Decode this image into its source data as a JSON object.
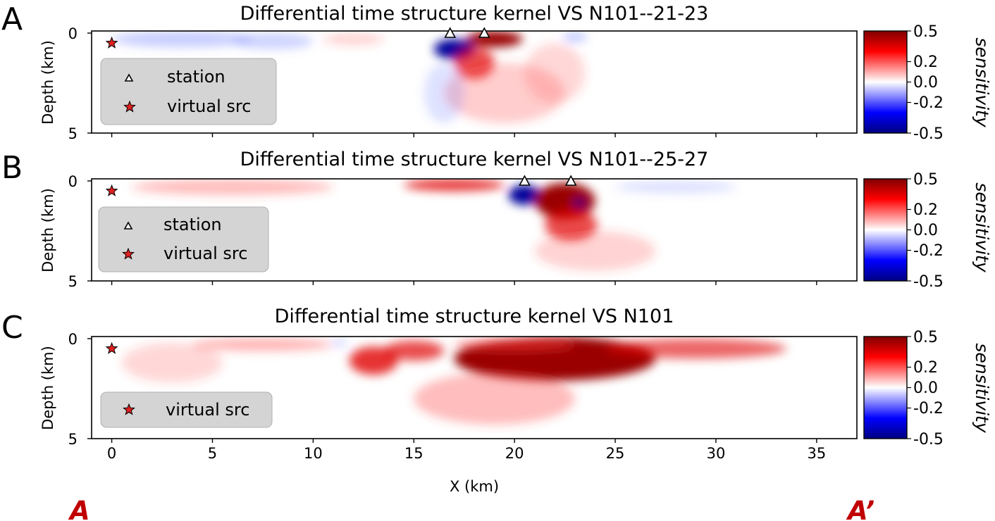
{
  "figure": {
    "endpoint_left": "A",
    "endpoint_right": "A’",
    "xlabel": "X (km)"
  },
  "chart_data": [
    {
      "type": "heatmap",
      "panel_letter": "A",
      "title": "Differential time structure kernel VS N101--21-23",
      "xlabel": "X (km)",
      "ylabel": "Depth (km)",
      "xlim": [
        -1,
        37
      ],
      "ylim": [
        5,
        0
      ],
      "x_ticks": [
        0,
        5,
        10,
        15,
        20,
        25,
        30,
        35
      ],
      "x_tick_labels": [],
      "y_ticks": [
        0,
        5
      ],
      "y_tick_labels": [
        "0",
        "5"
      ],
      "colorbar": {
        "label": "sensitivity",
        "range": [
          -0.5,
          0.5
        ],
        "cmap": "seismic",
        "ticks": [
          0.5,
          0.2,
          0.0,
          -0.2,
          -0.5
        ],
        "tick_labels": [
          "0.5",
          "0.2",
          "0.0",
          "-0.2",
          "-0.5"
        ]
      },
      "legend": {
        "position": "lower-left",
        "entries": [
          {
            "marker": "triangle",
            "label": "station"
          },
          {
            "marker": "star",
            "label": "virtual src"
          }
        ]
      },
      "stations": [
        {
          "x": 16.8,
          "depth": 0.0
        },
        {
          "x": 18.5,
          "depth": 0.0
        }
      ],
      "virtual_source": {
        "x": 0.0,
        "depth": 0.5
      },
      "anomalies": [
        {
          "x": 17.0,
          "depth": 0.8,
          "sx": 1.0,
          "sd": 0.5,
          "value": -0.45
        },
        {
          "x": 19.0,
          "depth": 0.3,
          "sx": 1.4,
          "sd": 0.4,
          "value": 0.5
        },
        {
          "x": 18.0,
          "depth": 1.5,
          "sx": 1.0,
          "sd": 0.8,
          "value": 0.3
        },
        {
          "x": 19.5,
          "depth": 3.0,
          "sx": 3.0,
          "sd": 1.5,
          "value": 0.08
        },
        {
          "x": 3.5,
          "depth": 0.3,
          "sx": 3.5,
          "sd": 0.4,
          "value": -0.12
        },
        {
          "x": 8.0,
          "depth": 0.4,
          "sx": 2.0,
          "sd": 0.4,
          "value": -0.1
        },
        {
          "x": 12.0,
          "depth": 0.3,
          "sx": 1.5,
          "sd": 0.3,
          "value": 0.06
        },
        {
          "x": 23.0,
          "depth": 0.2,
          "sx": 0.6,
          "sd": 0.2,
          "value": -0.18
        },
        {
          "x": 22.0,
          "depth": 2.0,
          "sx": 1.5,
          "sd": 1.5,
          "value": 0.05
        },
        {
          "x": 16.5,
          "depth": 3.0,
          "sx": 1.0,
          "sd": 1.5,
          "value": -0.05
        }
      ]
    },
    {
      "type": "heatmap",
      "panel_letter": "B",
      "title": "Differential time structure kernel VS N101--25-27",
      "xlabel": "X (km)",
      "ylabel": "Depth (km)",
      "xlim": [
        -1,
        37
      ],
      "ylim": [
        5,
        0
      ],
      "x_ticks": [
        0,
        5,
        10,
        15,
        20,
        25,
        30,
        35
      ],
      "x_tick_labels": [],
      "y_ticks": [
        0,
        5
      ],
      "y_tick_labels": [
        "0",
        "5"
      ],
      "colorbar": {
        "label": "sensitivity",
        "range": [
          -0.5,
          0.5
        ],
        "cmap": "seismic",
        "ticks": [
          0.5,
          0.2,
          0.0,
          -0.2,
          -0.5
        ],
        "tick_labels": [
          "0.5",
          "0.2",
          "0.0",
          "-0.2",
          "-0.5"
        ]
      },
      "legend": {
        "position": "lower-left",
        "entries": [
          {
            "marker": "triangle",
            "label": "station"
          },
          {
            "marker": "star",
            "label": "virtual src"
          }
        ]
      },
      "stations": [
        {
          "x": 20.5,
          "depth": 0.0
        },
        {
          "x": 22.8,
          "depth": 0.0
        }
      ],
      "virtual_source": {
        "x": 0.0,
        "depth": 0.5
      },
      "anomalies": [
        {
          "x": 20.5,
          "depth": 0.7,
          "sx": 0.8,
          "sd": 0.5,
          "value": -0.5
        },
        {
          "x": 22.5,
          "depth": 1.0,
          "sx": 1.5,
          "sd": 0.9,
          "value": 0.5
        },
        {
          "x": 22.8,
          "depth": 2.2,
          "sx": 1.3,
          "sd": 0.8,
          "value": 0.3
        },
        {
          "x": 23.2,
          "depth": 1.1,
          "sx": 0.25,
          "sd": 0.2,
          "value": -0.4
        },
        {
          "x": 17.0,
          "depth": 0.2,
          "sx": 2.5,
          "sd": 0.3,
          "value": 0.35
        },
        {
          "x": 6.0,
          "depth": 0.3,
          "sx": 5.0,
          "sd": 0.4,
          "value": 0.12
        },
        {
          "x": 28.0,
          "depth": 0.3,
          "sx": 3.0,
          "sd": 0.3,
          "value": -0.06
        },
        {
          "x": 24.0,
          "depth": 3.5,
          "sx": 3.0,
          "sd": 1.0,
          "value": 0.06
        }
      ]
    },
    {
      "type": "heatmap",
      "panel_letter": "C",
      "title": "Differential time structure kernel VS N101",
      "xlabel": "X (km)",
      "ylabel": "Depth (km)",
      "xlim": [
        -1,
        37
      ],
      "ylim": [
        5,
        0
      ],
      "x_ticks": [
        0,
        5,
        10,
        15,
        20,
        25,
        30,
        35
      ],
      "x_tick_labels": [
        "0",
        "5",
        "10",
        "15",
        "20",
        "25",
        "30",
        "35"
      ],
      "y_ticks": [
        0,
        5
      ],
      "y_tick_labels": [
        "0",
        "5"
      ],
      "colorbar": {
        "label": "sensitivity",
        "range": [
          -0.5,
          0.5
        ],
        "cmap": "seismic",
        "ticks": [
          0.5,
          0.2,
          0.0,
          -0.2,
          -0.5
        ],
        "tick_labels": [
          "0.5",
          "0.2",
          "0.0",
          "-0.2",
          "-0.5"
        ]
      },
      "legend": {
        "position": "lower-left",
        "entries": [
          {
            "marker": "star",
            "label": "virtual src"
          }
        ]
      },
      "stations": [],
      "virtual_source": {
        "x": 0.0,
        "depth": 0.5
      },
      "anomalies": [
        {
          "x": 22.0,
          "depth": 1.0,
          "sx": 5.0,
          "sd": 1.1,
          "value": 0.45
        },
        {
          "x": 20.0,
          "depth": 0.3,
          "sx": 3.0,
          "sd": 0.3,
          "value": 0.2
        },
        {
          "x": 13.0,
          "depth": 1.1,
          "sx": 1.2,
          "sd": 0.7,
          "value": 0.35
        },
        {
          "x": 15.0,
          "depth": 0.6,
          "sx": 1.5,
          "sd": 0.5,
          "value": 0.3
        },
        {
          "x": 7.5,
          "depth": 0.3,
          "sx": 3.5,
          "sd": 0.3,
          "value": 0.15
        },
        {
          "x": 29.0,
          "depth": 0.5,
          "sx": 4.5,
          "sd": 0.5,
          "value": 0.25
        },
        {
          "x": 19.0,
          "depth": 3.0,
          "sx": 4.0,
          "sd": 1.3,
          "value": 0.12
        },
        {
          "x": 11.3,
          "depth": 0.2,
          "sx": 0.4,
          "sd": 0.15,
          "value": -0.12
        },
        {
          "x": 3.0,
          "depth": 1.2,
          "sx": 2.5,
          "sd": 1.0,
          "value": 0.05
        }
      ]
    }
  ]
}
